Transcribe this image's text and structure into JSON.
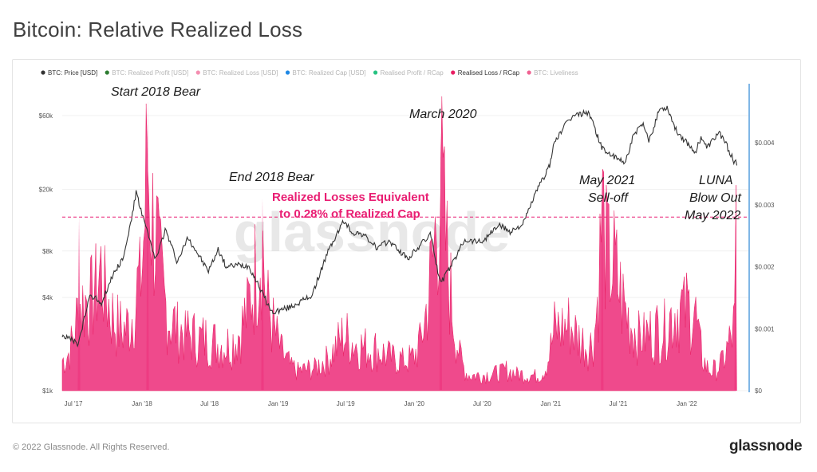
{
  "page": {
    "title": "Bitcoin: Relative Realized Loss",
    "footer_copyright": "© 2022 Glassnode. All Rights Reserved.",
    "footer_logo": "glassnode",
    "watermark": "glassnode"
  },
  "legend": [
    {
      "label": "BTC: Price [USD]",
      "color": "#333333",
      "active": true
    },
    {
      "label": "BTC: Realized Profit [USD]",
      "color": "#2e7d32",
      "active": false
    },
    {
      "label": "BTC: Realized Loss [USD]",
      "color": "#f48fb1",
      "active": false
    },
    {
      "label": "BTC: Realized Cap [USD]",
      "color": "#1e88e5",
      "active": false
    },
    {
      "label": "Realised Profit / RCap",
      "color": "#26c281",
      "active": false
    },
    {
      "label": "Realised Loss / RCap",
      "color": "#e91e63",
      "active": true
    },
    {
      "label": "BTC: Liveliness",
      "color": "#f06292",
      "active": false
    }
  ],
  "chart_data": {
    "type": "area",
    "title": "Bitcoin: Relative Realized Loss",
    "x_ticks": [
      "Jul '17",
      "Jan '18",
      "Jul '18",
      "Jan '19",
      "Jul '19",
      "Jan '20",
      "Jul '20",
      "Jan '21",
      "Jul '21",
      "Jan '22"
    ],
    "x_range": [
      "2017-06-01",
      "2022-06-15"
    ],
    "y_left": {
      "scale": "log",
      "ticks": [
        "$1k",
        "$4k",
        "$8k",
        "$20k",
        "$60k"
      ],
      "tick_values": [
        1000,
        4000,
        8000,
        20000,
        60000
      ]
    },
    "y_right": {
      "scale": "linear",
      "ticks": [
        "$0",
        "$0.001",
        "$0.002",
        "$0.003",
        "$0.004"
      ],
      "tick_values": [
        0,
        0.001,
        0.002,
        0.003,
        0.004
      ],
      "range": [
        0,
        0.0048
      ]
    },
    "threshold": 0.0028,
    "series": [
      {
        "name": "BTC: Price [USD]",
        "color": "#333333",
        "axis": "left",
        "points": [
          [
            "2017-06-01",
            2300
          ],
          [
            "2017-07-15",
            2000
          ],
          [
            "2017-08-15",
            4200
          ],
          [
            "2017-09-15",
            3700
          ],
          [
            "2017-10-15",
            5600
          ],
          [
            "2017-11-15",
            7500
          ],
          [
            "2017-12-17",
            19000
          ],
          [
            "2018-01-01",
            14000
          ],
          [
            "2018-02-06",
            7000
          ],
          [
            "2018-03-05",
            11000
          ],
          [
            "2018-04-06",
            6800
          ],
          [
            "2018-05-05",
            9800
          ],
          [
            "2018-06-28",
            5900
          ],
          [
            "2018-07-25",
            8200
          ],
          [
            "2018-08-15",
            6300
          ],
          [
            "2018-09-15",
            6500
          ],
          [
            "2018-10-15",
            6400
          ],
          [
            "2018-11-20",
            4300
          ],
          [
            "2018-12-15",
            3200
          ],
          [
            "2019-02-01",
            3450
          ],
          [
            "2019-04-01",
            4100
          ],
          [
            "2019-05-15",
            7900
          ],
          [
            "2019-06-26",
            12500
          ],
          [
            "2019-07-20",
            10500
          ],
          [
            "2019-08-15",
            10300
          ],
          [
            "2019-09-25",
            8300
          ],
          [
            "2019-10-26",
            9300
          ],
          [
            "2019-12-15",
            7100
          ],
          [
            "2020-02-14",
            10300
          ],
          [
            "2020-03-12",
            4900
          ],
          [
            "2020-04-15",
            6800
          ],
          [
            "2020-05-15",
            9500
          ],
          [
            "2020-07-01",
            9200
          ],
          [
            "2020-08-15",
            11800
          ],
          [
            "2020-09-15",
            10700
          ],
          [
            "2020-10-20",
            12000
          ],
          [
            "2020-11-20",
            18500
          ],
          [
            "2020-12-31",
            29000
          ],
          [
            "2021-01-10",
            40000
          ],
          [
            "2021-02-21",
            57000
          ],
          [
            "2021-03-13",
            61000
          ],
          [
            "2021-04-14",
            63000
          ],
          [
            "2021-05-19",
            37000
          ],
          [
            "2021-06-22",
            32000
          ],
          [
            "2021-07-20",
            30000
          ],
          [
            "2021-08-15",
            47000
          ],
          [
            "2021-09-06",
            52000
          ],
          [
            "2021-09-22",
            41000
          ],
          [
            "2021-10-20",
            66000
          ],
          [
            "2021-11-10",
            68000
          ],
          [
            "2021-12-04",
            48000
          ],
          [
            "2022-01-24",
            35000
          ],
          [
            "2022-02-10",
            44000
          ],
          [
            "2022-02-24",
            37000
          ],
          [
            "2022-03-29",
            47000
          ],
          [
            "2022-04-15",
            40000
          ],
          [
            "2022-05-09",
            30000
          ],
          [
            "2022-05-15",
            29500
          ]
        ]
      },
      {
        "name": "Realised Loss / RCap",
        "color": "#e91e63",
        "axis": "right",
        "points": [
          [
            "2017-06-01",
            0.0006
          ],
          [
            "2017-07-16",
            0.0017
          ],
          [
            "2017-09-15",
            0.0024
          ],
          [
            "2017-11-12",
            0.0012
          ],
          [
            "2017-12-22",
            0.0021
          ],
          [
            "2018-01-16",
            0.0047
          ],
          [
            "2018-02-06",
            0.0032
          ],
          [
            "2018-03-30",
            0.0013
          ],
          [
            "2018-06-24",
            0.001
          ],
          [
            "2018-08-14",
            0.0009
          ],
          [
            "2018-11-20",
            0.0031
          ],
          [
            "2018-12-07",
            0.0016
          ],
          [
            "2019-03-01",
            0.0004
          ],
          [
            "2019-06-27",
            0.0011
          ],
          [
            "2019-09-25",
            0.0008
          ],
          [
            "2019-12-17",
            0.0006
          ],
          [
            "2020-03-12",
            0.0042
          ],
          [
            "2020-06-01",
            0.0003
          ],
          [
            "2020-09-03",
            0.0004
          ],
          [
            "2020-11-26",
            0.0003
          ],
          [
            "2021-01-11",
            0.0012
          ],
          [
            "2021-02-23",
            0.0013
          ],
          [
            "2021-04-18",
            0.0009
          ],
          [
            "2021-05-19",
            0.0036
          ],
          [
            "2021-06-22",
            0.0024
          ],
          [
            "2021-09-07",
            0.0011
          ],
          [
            "2021-12-04",
            0.0016
          ],
          [
            "2022-01-22",
            0.0016
          ],
          [
            "2022-03-07",
            0.0004
          ],
          [
            "2022-05-09",
            0.0013
          ],
          [
            "2022-05-12",
            0.0029
          ]
        ]
      }
    ],
    "annotations": [
      {
        "text": "Start 2018 Bear"
      },
      {
        "text": "End 2018 Bear"
      },
      {
        "text": "March 2020"
      },
      {
        "text": "May 2021"
      },
      {
        "text": "Sell-off"
      },
      {
        "text": "LUNA"
      },
      {
        "text": "Blow Out"
      },
      {
        "text": "May 2022"
      },
      {
        "text": "Realized Losses Equivalent"
      },
      {
        "text": "to 0.28% of Realized Cap"
      }
    ]
  }
}
